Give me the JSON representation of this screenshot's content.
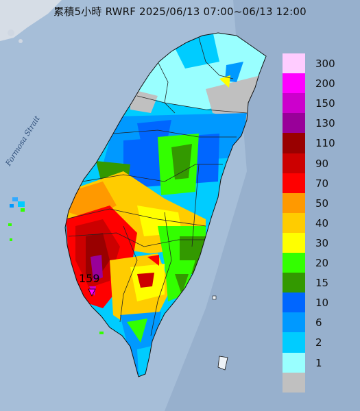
{
  "map": {
    "title": "累積5小時 RWRF 2025/06/13 07:00~06/13 12:00",
    "sea_label": "Formosa Strait",
    "max_value_label": "159"
  },
  "legend": {
    "items": [
      {
        "label": "300",
        "color": "#ffccff"
      },
      {
        "label": "200",
        "color": "#ff00ff"
      },
      {
        "label": "150",
        "color": "#cc00cc"
      },
      {
        "label": "130",
        "color": "#990099"
      },
      {
        "label": "110",
        "color": "#990000"
      },
      {
        "label": "90",
        "color": "#cc0000"
      },
      {
        "label": "70",
        "color": "#ff0000"
      },
      {
        "label": "50",
        "color": "#ff9900"
      },
      {
        "label": "40",
        "color": "#ffcc00"
      },
      {
        "label": "30",
        "color": "#ffff00"
      },
      {
        "label": "20",
        "color": "#33ff00"
      },
      {
        "label": "15",
        "color": "#339900"
      },
      {
        "label": "10",
        "color": "#0066ff"
      },
      {
        "label": "6",
        "color": "#0099ff"
      },
      {
        "label": "2",
        "color": "#00ccff"
      },
      {
        "label": "1",
        "color": "#99ffff"
      },
      {
        "label": "",
        "color": "#c0c0c0"
      }
    ]
  }
}
